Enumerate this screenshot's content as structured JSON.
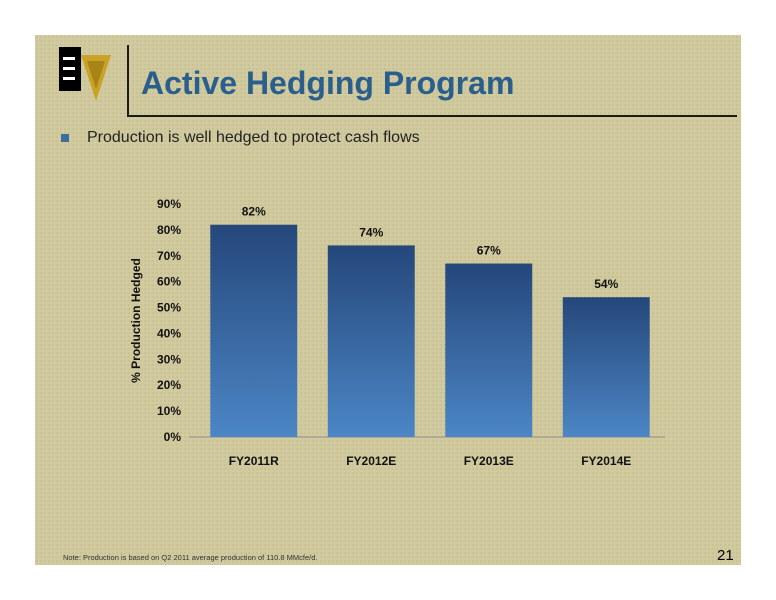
{
  "slide": {
    "title": "Active Hedging Program",
    "bullet": "Production is well hedged to protect cash flows",
    "note": "Note: Production is based on Q2 2011 average production of 110.8 MMcfe/d.",
    "page_number": "21"
  },
  "logo": {
    "icon": "company-logo",
    "colors": [
      "#000000",
      "#c9a227",
      "#ffffff"
    ]
  },
  "colors": {
    "title": "#2a5e8c",
    "bar_top": "#25477a",
    "bar_bottom": "#4c86c6",
    "background": "#d1ca9e"
  },
  "chart_data": {
    "type": "bar",
    "categories": [
      "FY2011R",
      "FY2012E",
      "FY2013E",
      "FY2014E"
    ],
    "values": [
      82,
      74,
      67,
      54
    ],
    "data_labels": [
      "82%",
      "74%",
      "67%",
      "54%"
    ],
    "ylabel": "% Production Hedged",
    "ylim": [
      0,
      90
    ],
    "yticks": [
      "0%",
      "10%",
      "20%",
      "30%",
      "40%",
      "50%",
      "60%",
      "70%",
      "80%",
      "90%"
    ],
    "grid": false,
    "legend": "none"
  }
}
